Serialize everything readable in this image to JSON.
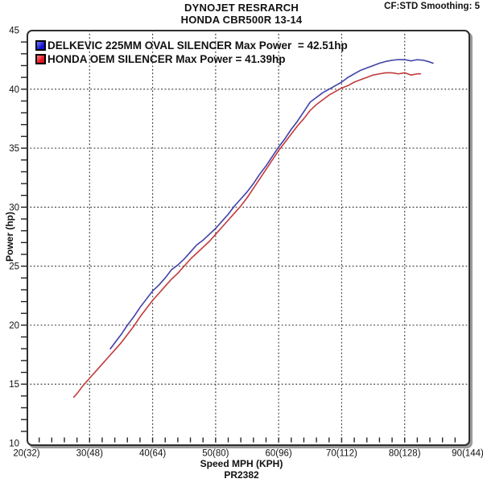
{
  "header": {
    "title_line1": "DYNOJET RESRARCH",
    "title_line2": "HONDA CBR500R 13-14",
    "smoothing": "CF:STD Smoothing: 5"
  },
  "footer": {
    "xlabel": "Speed MPH (KPH)",
    "run_id": "PR2382"
  },
  "ylabel": "Power (hp)",
  "legend": [
    {
      "label": "DELKEVIC 225MM OVAL SILENCER Max Power  = 42.51hp",
      "color": "#1414d2",
      "color_light": "#7d7dff"
    },
    {
      "label": "HONDA OEM SILENCER Max Power = 41.39hp",
      "color": "#e3131f",
      "color_light": "#ff7d7d"
    }
  ],
  "chart_data": {
    "type": "line",
    "title": "DYNOJET RESRARCH - HONDA CBR500R 13-14",
    "xlabel": "Speed MPH (KPH)",
    "ylabel": "Power (hp)",
    "xlim": [
      20,
      90
    ],
    "ylim": [
      10,
      45
    ],
    "x_minor_step": 2,
    "y_minor_step": 1,
    "grid": "dotted lines at major ticks, black frame with drop shadow",
    "legend_position": "top-left inside plot",
    "grid_color": "#3f3f3f",
    "x_major_ticks": [
      {
        "value": 20,
        "label": "20(32)"
      },
      {
        "value": 30,
        "label": "30(48)"
      },
      {
        "value": 40,
        "label": "40(64)"
      },
      {
        "value": 50,
        "label": "50(80)"
      },
      {
        "value": 60,
        "label": "60(96)"
      },
      {
        "value": 70,
        "label": "70(112)"
      },
      {
        "value": 80,
        "label": "80(128)"
      },
      {
        "value": 90,
        "label": "90(144)"
      }
    ],
    "y_major_ticks": [
      {
        "value": 10,
        "label": "10"
      },
      {
        "value": 15,
        "label": "15"
      },
      {
        "value": 20,
        "label": "20"
      },
      {
        "value": 25,
        "label": "25"
      },
      {
        "value": 30,
        "label": "30"
      },
      {
        "value": 35,
        "label": "35"
      },
      {
        "value": 40,
        "label": "40"
      },
      {
        "value": 45,
        "label": "45"
      }
    ],
    "series": [
      {
        "name": "DELKEVIC 225MM OVAL SILENCER",
        "max_power_hp": 42.51,
        "color": "#4040aa",
        "points": [
          [
            33.3,
            18.0
          ],
          [
            34,
            18.5
          ],
          [
            35,
            19.2
          ],
          [
            36,
            20.0
          ],
          [
            37,
            20.7
          ],
          [
            38,
            21.5
          ],
          [
            39,
            22.2
          ],
          [
            40,
            22.9
          ],
          [
            41,
            23.4
          ],
          [
            42,
            24.0
          ],
          [
            43,
            24.7
          ],
          [
            44,
            25.1
          ],
          [
            45,
            25.6
          ],
          [
            46,
            26.2
          ],
          [
            47,
            26.8
          ],
          [
            48,
            27.2
          ],
          [
            49,
            27.7
          ],
          [
            50,
            28.2
          ],
          [
            51,
            28.8
          ],
          [
            52,
            29.4
          ],
          [
            53,
            30.1
          ],
          [
            54,
            30.7
          ],
          [
            55,
            31.3
          ],
          [
            56,
            32.0
          ],
          [
            57,
            32.8
          ],
          [
            58,
            33.5
          ],
          [
            59,
            34.3
          ],
          [
            60,
            35.1
          ],
          [
            61,
            35.8
          ],
          [
            62,
            36.6
          ],
          [
            63,
            37.3
          ],
          [
            64,
            38.1
          ],
          [
            65,
            38.9
          ],
          [
            66,
            39.3
          ],
          [
            67,
            39.7
          ],
          [
            68,
            40.0
          ],
          [
            69,
            40.3
          ],
          [
            70,
            40.6
          ],
          [
            71,
            41.0
          ],
          [
            72,
            41.3
          ],
          [
            73,
            41.6
          ],
          [
            74,
            41.8
          ],
          [
            75,
            42.0
          ],
          [
            76,
            42.2
          ],
          [
            77,
            42.35
          ],
          [
            78,
            42.45
          ],
          [
            79,
            42.51
          ],
          [
            80,
            42.5
          ],
          [
            81,
            42.4
          ],
          [
            82,
            42.5
          ],
          [
            83,
            42.45
          ],
          [
            84,
            42.3
          ],
          [
            84.5,
            42.2
          ]
        ]
      },
      {
        "name": "HONDA OEM SILENCER",
        "max_power_hp": 41.39,
        "color": "#c23b3b",
        "points": [
          [
            27.5,
            13.9
          ],
          [
            28,
            14.2
          ],
          [
            29,
            14.9
          ],
          [
            30,
            15.5
          ],
          [
            31,
            16.1
          ],
          [
            32,
            16.7
          ],
          [
            33,
            17.3
          ],
          [
            34,
            17.9
          ],
          [
            35,
            18.5
          ],
          [
            36,
            19.2
          ],
          [
            37,
            19.9
          ],
          [
            38,
            20.7
          ],
          [
            39,
            21.4
          ],
          [
            40,
            22.1
          ],
          [
            41,
            22.7
          ],
          [
            42,
            23.3
          ],
          [
            43,
            23.9
          ],
          [
            44,
            24.4
          ],
          [
            45,
            25.0
          ],
          [
            46,
            25.6
          ],
          [
            47,
            26.1
          ],
          [
            48,
            26.6
          ],
          [
            49,
            27.1
          ],
          [
            50,
            27.7
          ],
          [
            51,
            28.3
          ],
          [
            52,
            28.9
          ],
          [
            53,
            29.5
          ],
          [
            54,
            30.1
          ],
          [
            55,
            30.8
          ],
          [
            56,
            31.6
          ],
          [
            57,
            32.4
          ],
          [
            58,
            33.2
          ],
          [
            59,
            34.0
          ],
          [
            60,
            34.8
          ],
          [
            61,
            35.5
          ],
          [
            62,
            36.2
          ],
          [
            63,
            36.9
          ],
          [
            64,
            37.5
          ],
          [
            65,
            38.2
          ],
          [
            66,
            38.7
          ],
          [
            67,
            39.1
          ],
          [
            68,
            39.5
          ],
          [
            69,
            39.8
          ],
          [
            70,
            40.1
          ],
          [
            71,
            40.3
          ],
          [
            72,
            40.6
          ],
          [
            73,
            40.8
          ],
          [
            74,
            41.0
          ],
          [
            75,
            41.2
          ],
          [
            76,
            41.3
          ],
          [
            77,
            41.39
          ],
          [
            78,
            41.39
          ],
          [
            79,
            41.3
          ],
          [
            80,
            41.39
          ],
          [
            81,
            41.2
          ],
          [
            82,
            41.3
          ],
          [
            82.5,
            41.3
          ]
        ]
      }
    ]
  }
}
